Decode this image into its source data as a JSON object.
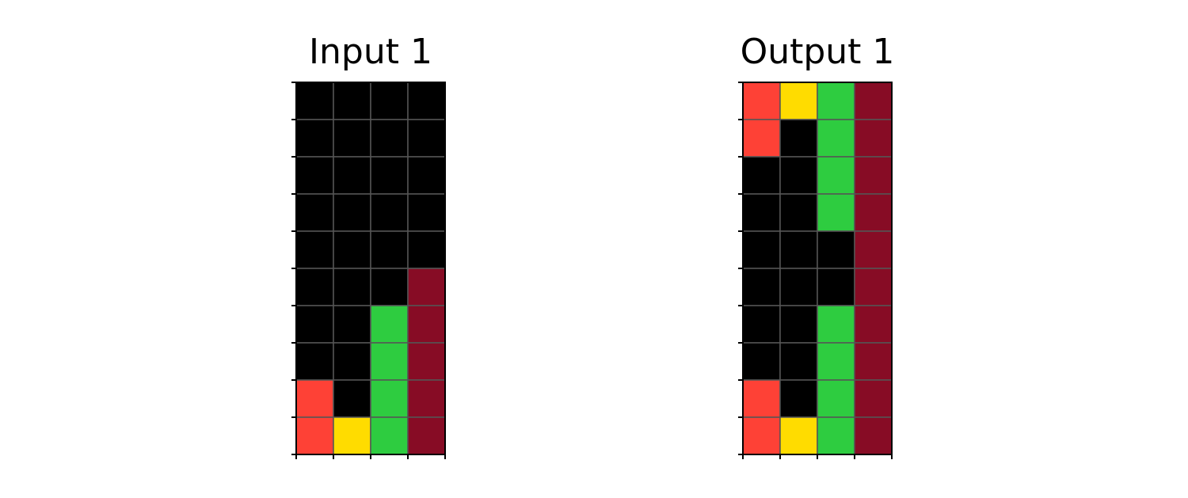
{
  "palette": {
    "0": "#000000",
    "2": "#fe4136",
    "3": "#2ecc40",
    "4": "#ffdc00",
    "9": "#870c25"
  },
  "grid_line_color": "#555555",
  "panels": [
    {
      "title": "Input 1",
      "rows": [
        [
          0,
          0,
          0,
          0
        ],
        [
          0,
          0,
          0,
          0
        ],
        [
          0,
          0,
          0,
          0
        ],
        [
          0,
          0,
          0,
          0
        ],
        [
          0,
          0,
          0,
          0
        ],
        [
          0,
          0,
          0,
          9
        ],
        [
          0,
          0,
          3,
          9
        ],
        [
          0,
          0,
          3,
          9
        ],
        [
          2,
          0,
          3,
          9
        ],
        [
          2,
          4,
          3,
          9
        ]
      ]
    },
    {
      "title": "Output 1",
      "rows": [
        [
          2,
          4,
          3,
          9
        ],
        [
          2,
          0,
          3,
          9
        ],
        [
          0,
          0,
          3,
          9
        ],
        [
          0,
          0,
          3,
          9
        ],
        [
          0,
          0,
          0,
          9
        ],
        [
          0,
          0,
          0,
          9
        ],
        [
          0,
          0,
          3,
          9
        ],
        [
          0,
          0,
          3,
          9
        ],
        [
          2,
          0,
          3,
          9
        ],
        [
          2,
          4,
          3,
          9
        ]
      ]
    }
  ]
}
